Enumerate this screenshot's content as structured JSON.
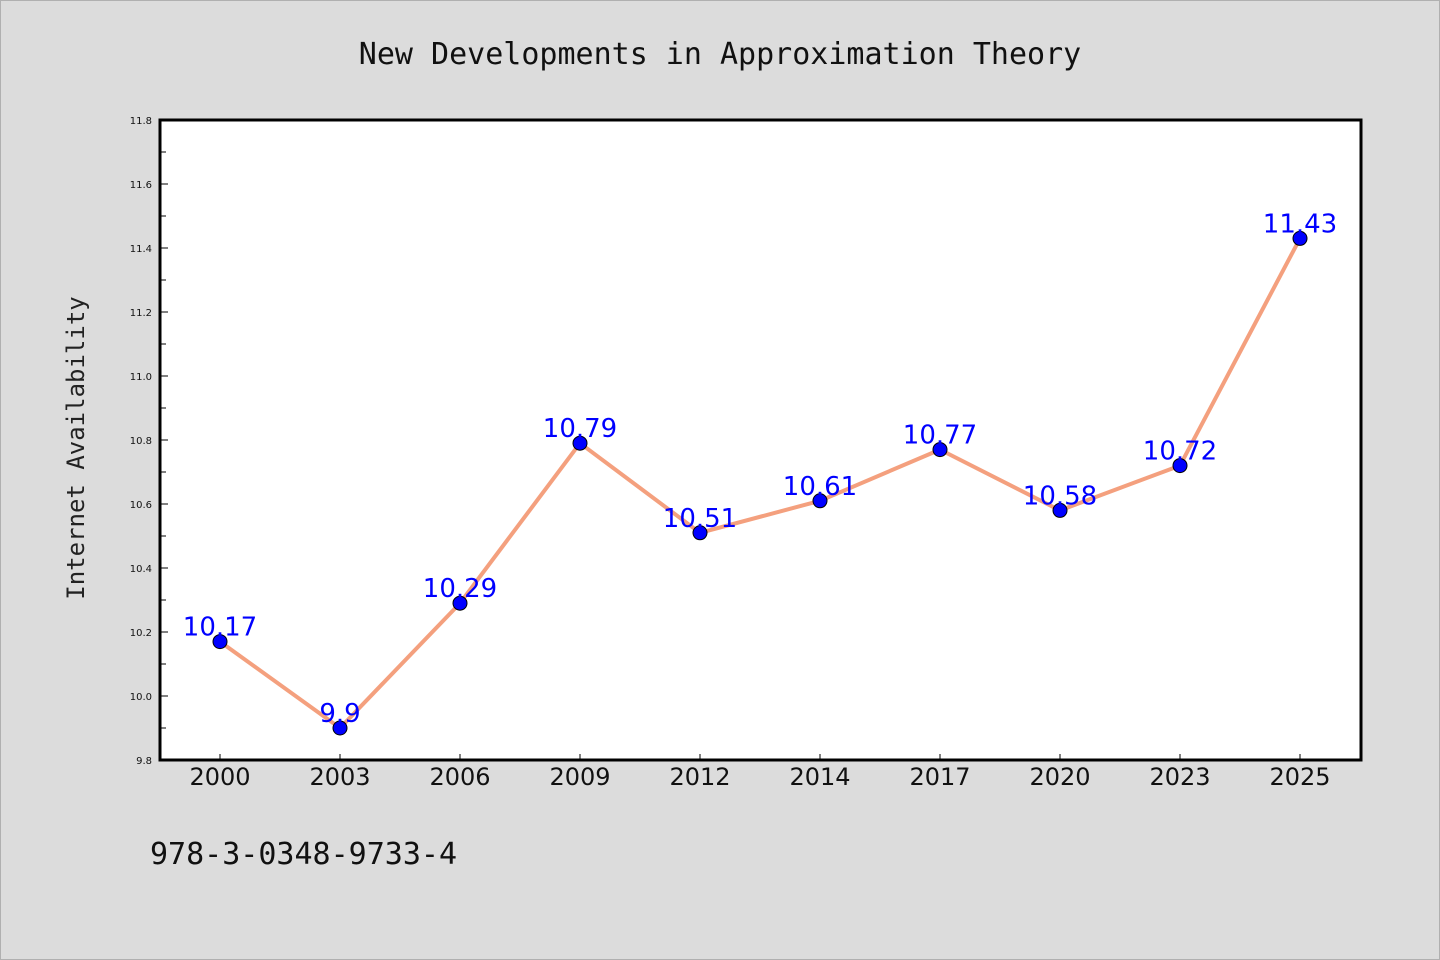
{
  "chart_data": {
    "type": "line",
    "title": "New Developments in Approximation Theory",
    "xlabel": "",
    "ylabel": "Internet Availability",
    "categories": [
      "2000",
      "2003",
      "2006",
      "2009",
      "2012",
      "2014",
      "2017",
      "2020",
      "2023",
      "2025"
    ],
    "values": [
      10.17,
      9.9,
      10.29,
      10.79,
      10.51,
      10.61,
      10.77,
      10.58,
      10.72,
      11.43
    ],
    "data_labels": [
      "10.17",
      "9.9",
      "10.29",
      "10.79",
      "10.51",
      "10.61",
      "10.77",
      "10.58",
      "10.72",
      "11.43"
    ],
    "ylim": [
      9.8,
      11.8
    ],
    "yticks": [
      "9.8",
      "10.0",
      "10.2",
      "10.4",
      "10.6",
      "10.8",
      "11.0",
      "11.2",
      "11.4",
      "11.6",
      "11.8"
    ],
    "grid": false,
    "line_color": "#f4a07e",
    "marker_color": "#0000ff",
    "label_color": "#0000ff"
  },
  "footer_code": "978-3-0348-9733-4"
}
